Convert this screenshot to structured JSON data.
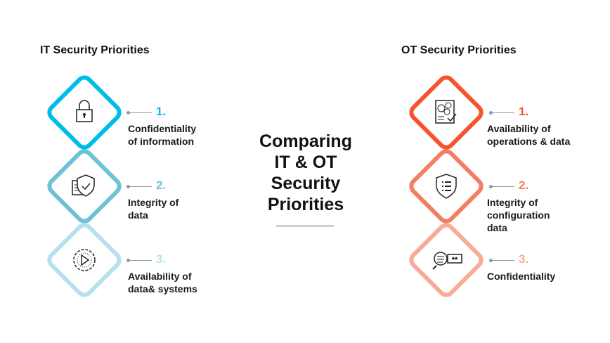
{
  "center_title": [
    "Comparing",
    "IT & OT",
    "Security",
    "Priorities"
  ],
  "it": {
    "heading": "IT Security Priorities",
    "items": [
      {
        "number": "1.",
        "label": [
          "Confidentiality",
          "of information"
        ],
        "icon": "padlock-icon",
        "color": "#00BDE8"
      },
      {
        "number": "2.",
        "label": [
          "Integrity of",
          "data"
        ],
        "icon": "document-shield-check-icon",
        "color": "#6CC3D6"
      },
      {
        "number": "3.",
        "label": [
          "Availability of",
          "data& systems"
        ],
        "icon": "gear-play-icon",
        "color": "#B6E2EE"
      }
    ]
  },
  "ot": {
    "heading": "OT Security Priorities",
    "items": [
      {
        "number": "1.",
        "label": [
          "Availability of",
          "operations & data"
        ],
        "icon": "gears-checklist-icon",
        "color": "#F4552B"
      },
      {
        "number": "2.",
        "label": [
          "Integrity of",
          "configuration",
          "data"
        ],
        "icon": "shield-list-icon",
        "color": "#F47E62"
      },
      {
        "number": "3.",
        "label": [
          "Confidentiality"
        ],
        "icon": "magnifier-password-icon",
        "color": "#F9AC95"
      }
    ]
  }
}
